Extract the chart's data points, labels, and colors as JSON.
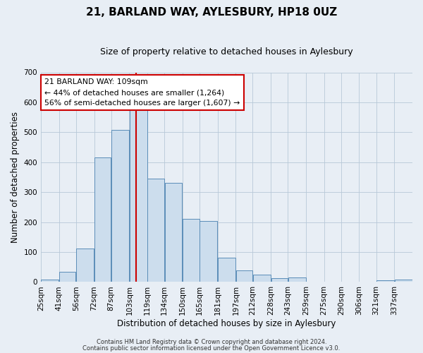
{
  "title": "21, BARLAND WAY, AYLESBURY, HP18 0UZ",
  "subtitle": "Size of property relative to detached houses in Aylesbury",
  "xlabel": "Distribution of detached houses by size in Aylesbury",
  "ylabel": "Number of detached properties",
  "bar_labels": [
    "25sqm",
    "41sqm",
    "56sqm",
    "72sqm",
    "87sqm",
    "103sqm",
    "119sqm",
    "134sqm",
    "150sqm",
    "165sqm",
    "181sqm",
    "197sqm",
    "212sqm",
    "228sqm",
    "243sqm",
    "259sqm",
    "275sqm",
    "290sqm",
    "306sqm",
    "321sqm",
    "337sqm"
  ],
  "bar_heights": [
    8,
    35,
    112,
    415,
    507,
    575,
    345,
    332,
    210,
    203,
    82,
    38,
    25,
    12,
    15,
    0,
    0,
    0,
    0,
    5,
    7
  ],
  "bin_edges": [
    25,
    41,
    56,
    72,
    87,
    103,
    119,
    134,
    150,
    165,
    181,
    197,
    212,
    228,
    243,
    259,
    275,
    290,
    306,
    321,
    337,
    353
  ],
  "bar_color": "#ccdded",
  "bar_edge_color": "#5b8db8",
  "vline_x": 109,
  "vline_color": "#cc0000",
  "ylim": [
    0,
    700
  ],
  "yticks": [
    0,
    100,
    200,
    300,
    400,
    500,
    600,
    700
  ],
  "annotation_title": "21 BARLAND WAY: 109sqm",
  "annotation_line1": "← 44% of detached houses are smaller (1,264)",
  "annotation_line2": "56% of semi-detached houses are larger (1,607) →",
  "annotation_box_color": "#ffffff",
  "annotation_box_edge": "#cc0000",
  "footer_line1": "Contains HM Land Registry data © Crown copyright and database right 2024.",
  "footer_line2": "Contains public sector information licensed under the Open Government Licence v3.0.",
  "background_color": "#e8eef5",
  "plot_background_color": "#e8eef5",
  "title_fontsize": 11,
  "subtitle_fontsize": 9,
  "ylabel_fontsize": 8.5,
  "xlabel_fontsize": 8.5,
  "tick_fontsize": 7.5,
  "footer_fontsize": 6
}
